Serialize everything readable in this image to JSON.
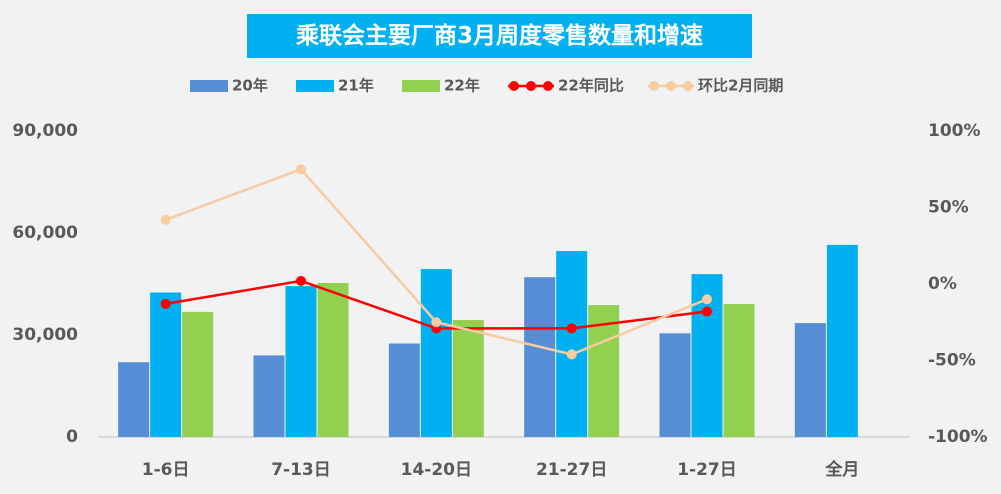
{
  "chart_data": {
    "type": "bar",
    "title": "乘联会主要厂商3月周度零售数量和增速",
    "categories": [
      "1-6日",
      "7-13日",
      "14-20日",
      "21-27日",
      "1-27日",
      "全月"
    ],
    "series": [
      {
        "name": "20年",
        "color": "#558ed5",
        "values": [
          22000,
          24000,
          27500,
          47000,
          30500,
          33500
        ]
      },
      {
        "name": "21年",
        "color": "#00b0f0",
        "values": [
          42500,
          44400,
          49400,
          54700,
          47900,
          56500
        ]
      },
      {
        "name": "22年",
        "color": "#92d050",
        "values": [
          36800,
          45300,
          34400,
          38800,
          39100,
          null
        ]
      },
      {
        "name": "22年同比",
        "color": "#ff0000",
        "type": "line",
        "axis": "y2",
        "values": [
          -13,
          2,
          -29,
          -29,
          -18,
          null
        ]
      },
      {
        "name": "环比2月同期",
        "color": "#f8cba0",
        "type": "line",
        "axis": "y2",
        "values": [
          42,
          75,
          -25,
          -46,
          -10,
          null
        ]
      }
    ],
    "ylim": [
      0,
      90000
    ],
    "yticks": [
      0,
      {
        "value": 30000,
        "label": "30,000"
      },
      {
        "value": 60000,
        "label": "60,000"
      },
      {
        "value": 90000,
        "label": "90,000"
      }
    ],
    "y2lim": [
      -100,
      100
    ],
    "y2ticks": [
      {
        "value": -100,
        "label": "-100%"
      },
      {
        "value": -50,
        "label": "-50%"
      },
      {
        "value": 0,
        "label": "0%"
      },
      {
        "value": 50,
        "label": "50%"
      },
      {
        "value": 100,
        "label": "100%"
      }
    ],
    "legend": "top"
  }
}
